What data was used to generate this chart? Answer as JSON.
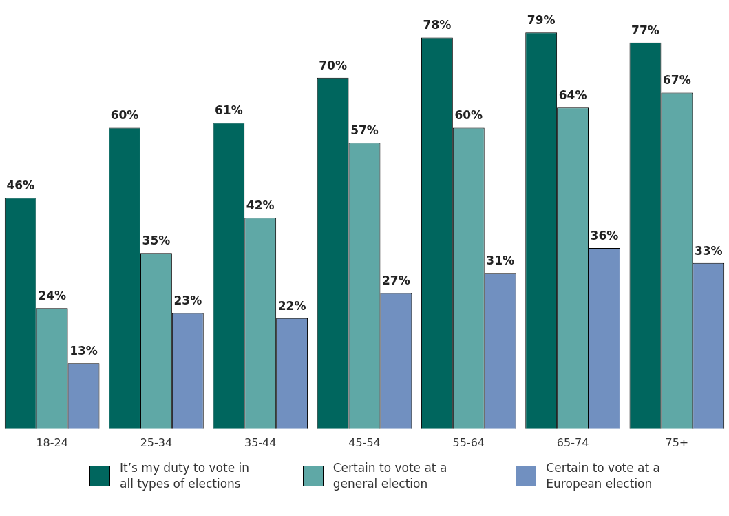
{
  "chart_data": {
    "type": "bar",
    "categories": [
      "18-24",
      "25-34",
      "35-44",
      "45-54",
      "55-64",
      "65-74",
      "75+"
    ],
    "series": [
      {
        "name": "It’s my duty to vote in all types of elections",
        "color": "#00665e",
        "values": [
          46,
          60,
          61,
          70,
          78,
          79,
          77
        ],
        "value_labels": [
          "46%",
          "60%",
          "61%",
          "70%",
          "78%",
          "79%",
          "77%"
        ]
      },
      {
        "name": "Certain to vote at a general election",
        "color": "#5fa8a6",
        "values": [
          24,
          35,
          42,
          57,
          60,
          64,
          67
        ],
        "value_labels": [
          "24%",
          "35%",
          "42%",
          "57%",
          "60%",
          "64%",
          "67%"
        ]
      },
      {
        "name": "Certain to vote at a European election",
        "color": "#7190c0",
        "values": [
          13,
          23,
          22,
          27,
          31,
          36,
          33
        ],
        "value_labels": [
          "13%",
          "23%",
          "22%",
          "27%",
          "31%",
          "36%",
          "33%"
        ]
      }
    ],
    "grid": false,
    "legend": "bottom",
    "tick_labels": "x"
  }
}
